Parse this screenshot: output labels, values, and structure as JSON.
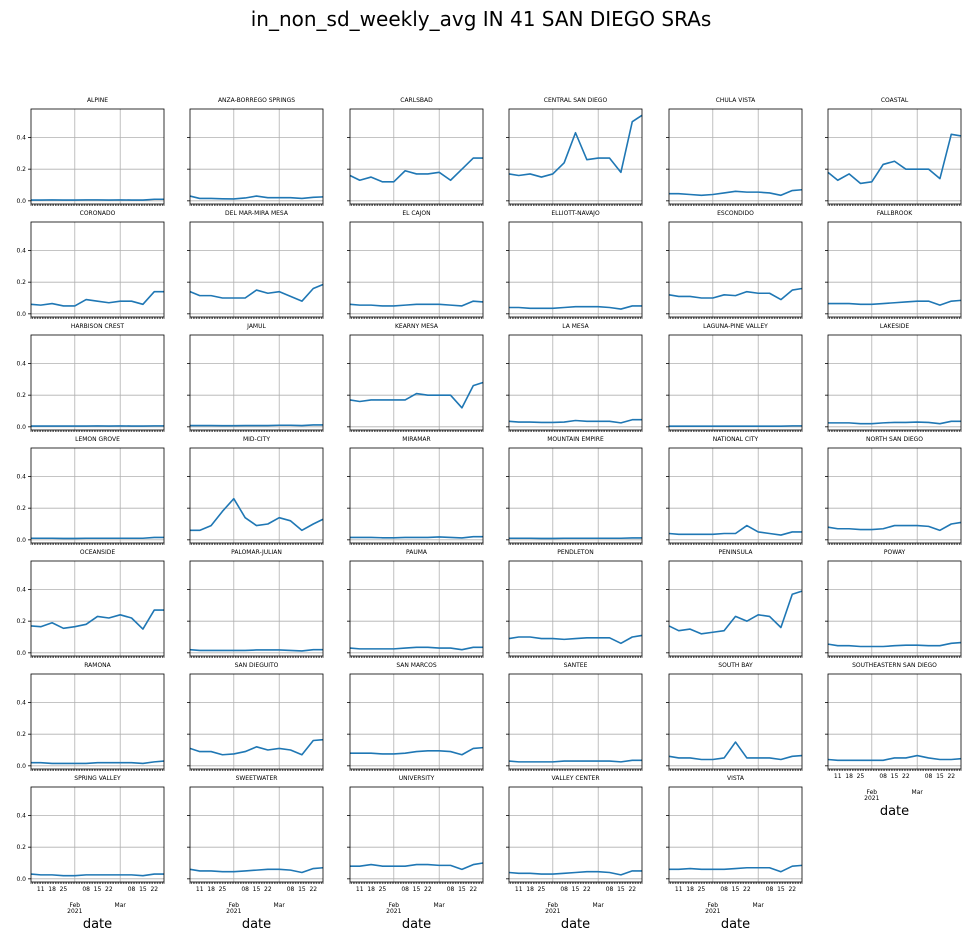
{
  "figure": {
    "title": "in_non_sd_weekly_avg IN 41 SAN DIEGO SRAs"
  },
  "chart_data": {
    "type": "line",
    "title": "in_non_sd_weekly_avg IN 41 SAN DIEGO SRAs",
    "xlabel": "date",
    "ylabel": "",
    "ylim": [
      -0.02,
      0.58
    ],
    "yticks": [
      0.0,
      0.2,
      0.4
    ],
    "ytick_labels": [
      "0.0",
      "0.2",
      "0.4"
    ],
    "xlim": [
      "2021-01-05",
      "2021-03-28"
    ],
    "major_xticks": [
      "2021-02-01",
      "2021-03-01"
    ],
    "xtick_labels": [
      {
        "date": "2021-01-11",
        "label": "11"
      },
      {
        "date": "2021-01-18",
        "label": "18"
      },
      {
        "date": "2021-01-25",
        "label": "25"
      },
      {
        "date": "2021-02-08",
        "label": "08"
      },
      {
        "date": "2021-02-15",
        "label": "15"
      },
      {
        "date": "2021-02-22",
        "label": "22"
      },
      {
        "date": "2021-03-08",
        "label": "08"
      },
      {
        "date": "2021-03-15",
        "label": "15"
      },
      {
        "date": "2021-03-22",
        "label": "22"
      }
    ],
    "month_labels": [
      {
        "date": "2021-02-01",
        "label": "Feb",
        "sub": "2021"
      },
      {
        "date": "2021-03-01",
        "label": "Mar",
        "sub": ""
      }
    ],
    "grid": true,
    "line_color": "#1f77b4",
    "grid_color": "#b0b0b0",
    "x": [
      "2021-01-05",
      "2021-01-11",
      "2021-01-18",
      "2021-01-25",
      "2021-02-01",
      "2021-02-08",
      "2021-02-15",
      "2021-02-22",
      "2021-03-01",
      "2021-03-08",
      "2021-03-15",
      "2021-03-22",
      "2021-03-28"
    ],
    "series": [
      {
        "name": "ALPINE",
        "values": [
          0.005,
          0.005,
          0.006,
          0.005,
          0.005,
          0.006,
          0.006,
          0.005,
          0.006,
          0.005,
          0.005,
          0.01,
          0.01
        ]
      },
      {
        "name": "ANZA-BORREGO SPRINGS",
        "values": [
          0.03,
          0.015,
          0.015,
          0.013,
          0.012,
          0.018,
          0.03,
          0.02,
          0.02,
          0.02,
          0.015,
          0.022,
          0.025
        ]
      },
      {
        "name": "CARLSBAD",
        "values": [
          0.16,
          0.13,
          0.15,
          0.12,
          0.12,
          0.19,
          0.17,
          0.17,
          0.18,
          0.13,
          0.2,
          0.27,
          0.27
        ]
      },
      {
        "name": "CENTRAL SAN DIEGO",
        "values": [
          0.17,
          0.16,
          0.17,
          0.15,
          0.17,
          0.24,
          0.43,
          0.26,
          0.27,
          0.27,
          0.18,
          0.5,
          0.54
        ]
      },
      {
        "name": "CHULA VISTA",
        "values": [
          0.045,
          0.045,
          0.04,
          0.035,
          0.04,
          0.05,
          0.06,
          0.055,
          0.055,
          0.05,
          0.035,
          0.065,
          0.07
        ]
      },
      {
        "name": "COASTAL",
        "values": [
          0.18,
          0.13,
          0.17,
          0.11,
          0.12,
          0.23,
          0.25,
          0.2,
          0.2,
          0.2,
          0.14,
          0.42,
          0.41
        ]
      },
      {
        "name": "CORONADO",
        "values": [
          0.06,
          0.055,
          0.065,
          0.05,
          0.05,
          0.09,
          0.08,
          0.07,
          0.08,
          0.08,
          0.06,
          0.14,
          0.14
        ]
      },
      {
        "name": "DEL MAR-MIRA MESA",
        "values": [
          0.14,
          0.115,
          0.115,
          0.1,
          0.1,
          0.1,
          0.15,
          0.13,
          0.14,
          0.11,
          0.08,
          0.16,
          0.185
        ]
      },
      {
        "name": "EL CAJON",
        "values": [
          0.06,
          0.055,
          0.055,
          0.05,
          0.05,
          0.055,
          0.06,
          0.06,
          0.06,
          0.055,
          0.05,
          0.08,
          0.075
        ]
      },
      {
        "name": "ELLIOTT-NAVAJO",
        "values": [
          0.04,
          0.04,
          0.035,
          0.035,
          0.035,
          0.04,
          0.045,
          0.045,
          0.045,
          0.04,
          0.03,
          0.05,
          0.05
        ]
      },
      {
        "name": "ESCONDIDO",
        "values": [
          0.12,
          0.11,
          0.11,
          0.1,
          0.1,
          0.12,
          0.115,
          0.14,
          0.13,
          0.13,
          0.09,
          0.15,
          0.16
        ]
      },
      {
        "name": "FALLBROOK",
        "values": [
          0.065,
          0.065,
          0.065,
          0.06,
          0.06,
          0.065,
          0.07,
          0.075,
          0.08,
          0.08,
          0.055,
          0.08,
          0.085
        ]
      },
      {
        "name": "HARBISON CREST",
        "values": [
          0.005,
          0.005,
          0.005,
          0.005,
          0.005,
          0.005,
          0.006,
          0.005,
          0.006,
          0.005,
          0.005,
          0.006,
          0.006
        ]
      },
      {
        "name": "JAMUL",
        "values": [
          0.008,
          0.008,
          0.008,
          0.007,
          0.007,
          0.008,
          0.008,
          0.008,
          0.01,
          0.01,
          0.008,
          0.012,
          0.012
        ]
      },
      {
        "name": "KEARNY MESA",
        "values": [
          0.17,
          0.16,
          0.17,
          0.17,
          0.17,
          0.17,
          0.21,
          0.2,
          0.2,
          0.2,
          0.12,
          0.26,
          0.28
        ]
      },
      {
        "name": "LA MESA",
        "values": [
          0.035,
          0.03,
          0.03,
          0.028,
          0.028,
          0.03,
          0.04,
          0.035,
          0.035,
          0.035,
          0.025,
          0.045,
          0.045
        ]
      },
      {
        "name": "LAGUNA-PINE VALLEY",
        "values": [
          0.004,
          0.004,
          0.004,
          0.004,
          0.004,
          0.004,
          0.004,
          0.004,
          0.004,
          0.004,
          0.004,
          0.006,
          0.006
        ]
      },
      {
        "name": "LAKESIDE",
        "values": [
          0.025,
          0.025,
          0.025,
          0.02,
          0.02,
          0.025,
          0.028,
          0.028,
          0.03,
          0.028,
          0.02,
          0.035,
          0.035
        ]
      },
      {
        "name": "LEMON GROVE",
        "values": [
          0.01,
          0.01,
          0.01,
          0.009,
          0.009,
          0.01,
          0.01,
          0.01,
          0.01,
          0.01,
          0.01,
          0.015,
          0.015
        ]
      },
      {
        "name": "MID-CITY",
        "values": [
          0.06,
          0.06,
          0.09,
          0.18,
          0.26,
          0.14,
          0.09,
          0.1,
          0.14,
          0.12,
          0.06,
          0.1,
          0.13
        ]
      },
      {
        "name": "MIRAMAR",
        "values": [
          0.015,
          0.015,
          0.015,
          0.013,
          0.013,
          0.015,
          0.015,
          0.015,
          0.018,
          0.015,
          0.012,
          0.02,
          0.02
        ]
      },
      {
        "name": "MOUNTAIN EMPIRE",
        "values": [
          0.01,
          0.01,
          0.01,
          0.009,
          0.009,
          0.01,
          0.01,
          0.01,
          0.01,
          0.01,
          0.01,
          0.012,
          0.012
        ]
      },
      {
        "name": "NATIONAL CITY",
        "values": [
          0.04,
          0.035,
          0.035,
          0.035,
          0.035,
          0.04,
          0.04,
          0.09,
          0.05,
          0.04,
          0.03,
          0.05,
          0.05
        ]
      },
      {
        "name": "NORTH SAN DIEGO",
        "values": [
          0.08,
          0.07,
          0.07,
          0.065,
          0.065,
          0.07,
          0.09,
          0.09,
          0.09,
          0.085,
          0.06,
          0.1,
          0.11
        ]
      },
      {
        "name": "OCEANSIDE",
        "values": [
          0.17,
          0.165,
          0.19,
          0.155,
          0.165,
          0.18,
          0.23,
          0.22,
          0.24,
          0.22,
          0.15,
          0.27,
          0.27
        ]
      },
      {
        "name": "PALOMAR-JULIAN",
        "values": [
          0.02,
          0.015,
          0.015,
          0.015,
          0.015,
          0.015,
          0.018,
          0.018,
          0.018,
          0.015,
          0.012,
          0.02,
          0.02
        ]
      },
      {
        "name": "PAUMA",
        "values": [
          0.03,
          0.025,
          0.025,
          0.025,
          0.025,
          0.03,
          0.035,
          0.035,
          0.03,
          0.03,
          0.02,
          0.035,
          0.035
        ]
      },
      {
        "name": "PENDLETON",
        "values": [
          0.09,
          0.1,
          0.1,
          0.09,
          0.09,
          0.085,
          0.09,
          0.095,
          0.095,
          0.095,
          0.06,
          0.1,
          0.11
        ]
      },
      {
        "name": "PENINSULA",
        "values": [
          0.17,
          0.14,
          0.15,
          0.12,
          0.13,
          0.14,
          0.23,
          0.2,
          0.24,
          0.23,
          0.16,
          0.37,
          0.39
        ]
      },
      {
        "name": "POWAY",
        "values": [
          0.055,
          0.045,
          0.045,
          0.04,
          0.04,
          0.04,
          0.045,
          0.048,
          0.048,
          0.045,
          0.045,
          0.06,
          0.065
        ]
      },
      {
        "name": "RAMONA",
        "values": [
          0.02,
          0.02,
          0.015,
          0.015,
          0.015,
          0.015,
          0.02,
          0.02,
          0.02,
          0.02,
          0.015,
          0.025,
          0.03
        ]
      },
      {
        "name": "SAN DIEGUITO",
        "values": [
          0.11,
          0.09,
          0.09,
          0.07,
          0.075,
          0.09,
          0.12,
          0.1,
          0.11,
          0.1,
          0.07,
          0.16,
          0.165
        ]
      },
      {
        "name": "SAN MARCOS",
        "values": [
          0.08,
          0.08,
          0.08,
          0.075,
          0.075,
          0.08,
          0.09,
          0.095,
          0.095,
          0.09,
          0.07,
          0.11,
          0.115
        ]
      },
      {
        "name": "SANTEE",
        "values": [
          0.03,
          0.025,
          0.025,
          0.025,
          0.025,
          0.03,
          0.03,
          0.03,
          0.03,
          0.03,
          0.025,
          0.035,
          0.035
        ]
      },
      {
        "name": "SOUTH BAY",
        "values": [
          0.06,
          0.05,
          0.05,
          0.04,
          0.04,
          0.05,
          0.15,
          0.05,
          0.05,
          0.05,
          0.04,
          0.06,
          0.065
        ]
      },
      {
        "name": "SOUTHEASTERN SAN DIEGO",
        "values": [
          0.04,
          0.035,
          0.035,
          0.035,
          0.035,
          0.035,
          0.05,
          0.05,
          0.065,
          0.05,
          0.04,
          0.04,
          0.045
        ]
      },
      {
        "name": "SPRING VALLEY",
        "values": [
          0.03,
          0.025,
          0.025,
          0.02,
          0.02,
          0.025,
          0.025,
          0.025,
          0.025,
          0.025,
          0.02,
          0.03,
          0.03
        ]
      },
      {
        "name": "SWEETWATER",
        "values": [
          0.06,
          0.05,
          0.05,
          0.045,
          0.045,
          0.05,
          0.055,
          0.06,
          0.06,
          0.055,
          0.04,
          0.065,
          0.07
        ]
      },
      {
        "name": "UNIVERSITY",
        "values": [
          0.08,
          0.08,
          0.09,
          0.08,
          0.08,
          0.08,
          0.09,
          0.09,
          0.085,
          0.085,
          0.06,
          0.09,
          0.1
        ]
      },
      {
        "name": "VALLEY CENTER",
        "values": [
          0.04,
          0.035,
          0.035,
          0.03,
          0.03,
          0.035,
          0.04,
          0.045,
          0.045,
          0.04,
          0.025,
          0.05,
          0.05
        ]
      },
      {
        "name": "VISTA",
        "values": [
          0.06,
          0.06,
          0.065,
          0.06,
          0.06,
          0.06,
          0.065,
          0.07,
          0.07,
          0.07,
          0.045,
          0.08,
          0.085
        ]
      }
    ]
  }
}
